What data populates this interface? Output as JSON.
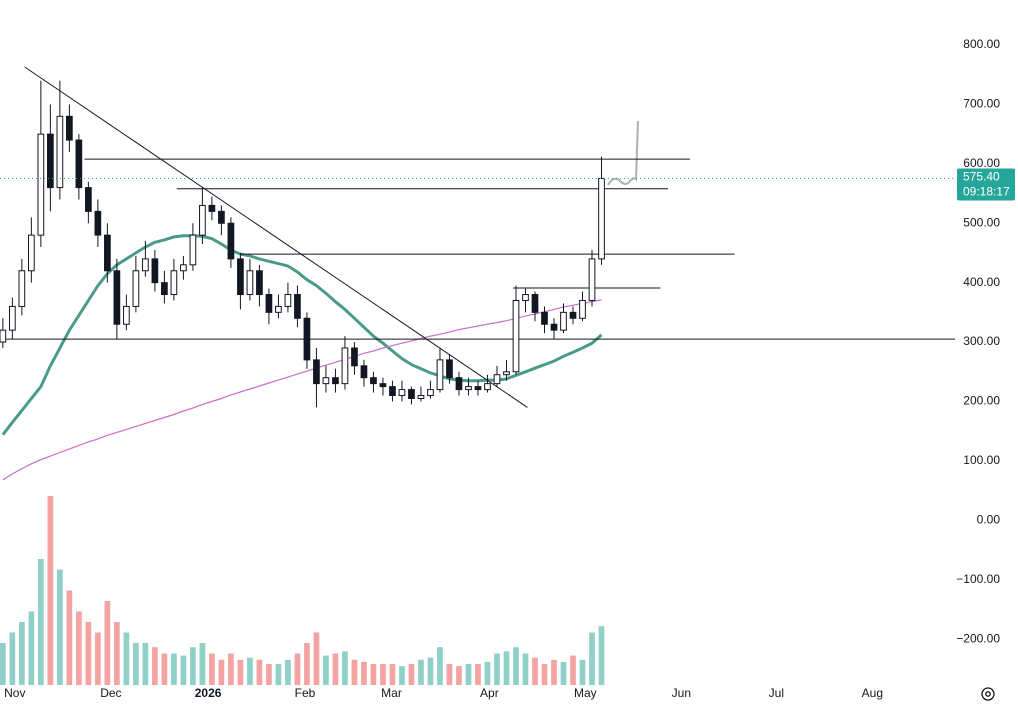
{
  "chart_data": {
    "type": "candlestick",
    "categories": [
      null,
      null,
      null,
      null,
      null,
      null,
      null,
      null,
      null,
      null,
      null,
      null,
      null,
      null,
      null,
      null,
      null,
      null,
      null,
      null,
      null,
      null,
      null,
      null,
      null,
      null,
      null,
      null,
      null,
      null,
      null,
      null,
      null,
      null,
      null,
      null,
      null,
      null,
      null,
      null,
      null,
      null,
      null,
      null,
      null,
      null,
      null,
      null,
      null,
      null,
      null,
      null,
      null,
      null,
      null,
      null,
      null,
      null,
      null,
      null,
      null,
      null,
      null,
      null
    ],
    "open": [
      300,
      320,
      360,
      420,
      480,
      650,
      560,
      680,
      640,
      560,
      520,
      480,
      420,
      330,
      360,
      420,
      440,
      400,
      380,
      420,
      430,
      480,
      530,
      520,
      500,
      440,
      380,
      420,
      380,
      350,
      360,
      380,
      340,
      270,
      230,
      240,
      230,
      290,
      260,
      240,
      230,
      225,
      210,
      220,
      205,
      210,
      220,
      270,
      240,
      220,
      225,
      220,
      230,
      245,
      250,
      370,
      380,
      350,
      330,
      320,
      350,
      340,
      370,
      440
    ],
    "high": [
      340,
      375,
      440,
      510,
      740,
      700,
      740,
      700,
      650,
      570,
      540,
      500,
      440,
      380,
      445,
      470,
      455,
      420,
      440,
      445,
      500,
      560,
      545,
      530,
      510,
      450,
      440,
      430,
      390,
      380,
      400,
      395,
      350,
      290,
      260,
      255,
      310,
      300,
      270,
      250,
      240,
      235,
      235,
      225,
      225,
      235,
      290,
      280,
      250,
      240,
      235,
      245,
      260,
      270,
      395,
      390,
      385,
      360,
      340,
      365,
      360,
      385,
      455,
      612
    ],
    "low": [
      290,
      305,
      345,
      400,
      460,
      520,
      540,
      620,
      540,
      500,
      460,
      400,
      305,
      320,
      350,
      410,
      385,
      365,
      370,
      405,
      420,
      465,
      505,
      480,
      425,
      355,
      370,
      360,
      330,
      340,
      350,
      325,
      255,
      190,
      215,
      215,
      220,
      245,
      225,
      215,
      210,
      200,
      200,
      195,
      200,
      205,
      215,
      230,
      210,
      210,
      210,
      215,
      225,
      235,
      245,
      350,
      335,
      315,
      305,
      315,
      330,
      335,
      360,
      430
    ],
    "close": [
      320,
      360,
      420,
      480,
      650,
      560,
      680,
      640,
      560,
      520,
      480,
      420,
      330,
      360,
      420,
      440,
      400,
      380,
      420,
      430,
      480,
      530,
      520,
      500,
      440,
      380,
      420,
      380,
      350,
      360,
      380,
      340,
      270,
      230,
      240,
      230,
      290,
      260,
      240,
      230,
      225,
      210,
      220,
      205,
      210,
      220,
      270,
      240,
      220,
      225,
      220,
      230,
      245,
      250,
      370,
      380,
      350,
      330,
      320,
      350,
      340,
      370,
      440,
      575.4
    ],
    "volume": [
      20,
      25,
      30,
      35,
      60,
      90,
      55,
      45,
      35,
      30,
      25,
      40,
      30,
      25,
      20,
      20,
      18,
      15,
      15,
      14,
      18,
      20,
      15,
      12,
      15,
      12,
      13,
      12,
      10,
      10,
      12,
      15,
      20,
      25,
      14,
      15,
      16,
      12,
      11,
      10,
      10,
      10,
      9,
      10,
      12,
      13,
      18,
      10,
      9,
      10,
      10,
      11,
      15,
      16,
      18,
      15,
      13,
      10,
      12,
      11,
      14,
      12,
      25,
      28
    ],
    "volume_lim": [
      0,
      100
    ],
    "moving_averages": [
      {
        "color": "#4a9a8a",
        "values": [
          144,
          165,
          185,
          205,
          225,
          260,
          290,
          320,
          345,
          370,
          395,
          415,
          430,
          440,
          450,
          460,
          468,
          472,
          477,
          479,
          479,
          478,
          474,
          465,
          455,
          448,
          445,
          440,
          436,
          432,
          428,
          418,
          405,
          395,
          382,
          368,
          355,
          340,
          325,
          310,
          298,
          285,
          272,
          262,
          255,
          248,
          243,
          238,
          236,
          235,
          235,
          236,
          236,
          238,
          244,
          250,
          256,
          262,
          268,
          276,
          283,
          290,
          298,
          312
        ]
      },
      {
        "color": "#c96fc9",
        "values": [
          68,
          78,
          87,
          95,
          102,
          108,
          114,
          120,
          126,
          132,
          137,
          143,
          148,
          153,
          158,
          163,
          168,
          173,
          178,
          184,
          189,
          195,
          200,
          205,
          211,
          216,
          221,
          226,
          231,
          236,
          241,
          246,
          251,
          256,
          261,
          266,
          271,
          276,
          281,
          285,
          290,
          294,
          298,
          302,
          306,
          310,
          313,
          317,
          321,
          324,
          327,
          330,
          333,
          336,
          340,
          344,
          347,
          351,
          355,
          359,
          362,
          365,
          368,
          371
        ]
      }
    ],
    "drawings": [
      {
        "x": [
          2.3,
          55.2
        ],
        "y": [
          763,
          190
        ]
      },
      {
        "x": [
          8.6,
          72.3
        ],
        "y": [
          608,
          608
        ]
      },
      {
        "x": [
          18.3,
          70
        ],
        "y": [
          558,
          558
        ]
      },
      {
        "x": [
          25,
          77
        ],
        "y": [
          448,
          448
        ]
      },
      {
        "x": [
          53.7,
          69.2
        ],
        "y": [
          391,
          391
        ]
      },
      {
        "x": [
          -0.3,
          100.2
        ],
        "y": [
          305,
          305
        ]
      }
    ],
    "up_color": "#ffffff",
    "down_color": "#131722",
    "volume_up_color": "#8fd0c8",
    "volume_down_color": "#f4a3a3",
    "last_price": {
      "value": 575.4,
      "label": "575.40"
    },
    "countdown": "09:18:17",
    "xlim": [
      -0.3,
      100.2
    ],
    "xticks": [
      {
        "value": 1.26,
        "label": "Nov"
      },
      {
        "value": 11.37,
        "label": "Dec"
      },
      {
        "value": 21.6,
        "label": "2026"
      },
      {
        "value": 31.8,
        "label": "Feb"
      },
      {
        "value": 40.9,
        "label": "Mar"
      },
      {
        "value": 51.2,
        "label": "Apr"
      },
      {
        "value": 61.3,
        "label": "May"
      },
      {
        "value": 71.4,
        "label": "Jun"
      },
      {
        "value": 81.4,
        "label": "Jul"
      },
      {
        "value": 91.5,
        "label": "Aug"
      }
    ],
    "ylim": [
      -277.3,
      875.8
    ],
    "yticks": [
      {
        "value": 800,
        "label": "800.00"
      },
      {
        "value": 700,
        "label": "700.00"
      },
      {
        "value": 600,
        "label": "600.00"
      },
      {
        "value": 500,
        "label": "500.00"
      },
      {
        "value": 400,
        "label": "400.00"
      },
      {
        "value": 300,
        "label": "300.00"
      },
      {
        "value": 200,
        "label": "200.00"
      },
      {
        "value": 100,
        "label": "100.00"
      },
      {
        "value": 0,
        "label": "0.00"
      },
      {
        "value": -100,
        "label": "−100.00"
      },
      {
        "value": -200,
        "label": "−200.00"
      }
    ]
  }
}
